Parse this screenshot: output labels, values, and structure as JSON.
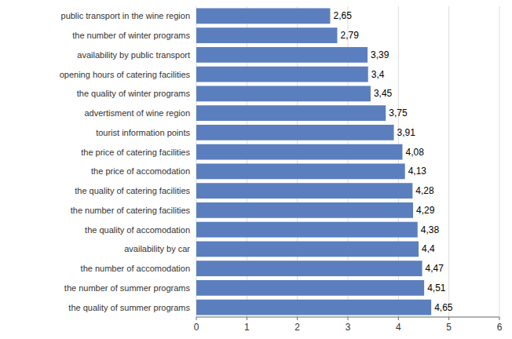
{
  "chart_data": {
    "type": "bar",
    "orientation": "horizontal",
    "categories": [
      "public transport in the wine region",
      "the number of winter programs",
      "availability by public transport",
      "opening hours of catering facilities",
      "the quality of winter programs",
      "advertisment of wine region",
      "tourist information points",
      "the price of catering facilities",
      "the price of accomodation",
      "the quality of catering facilities",
      "the number of catering facilities",
      "the quality of accomodation",
      "availability by car",
      "the number of accomodation",
      "the number  of summer programs",
      "the quality of summer programs"
    ],
    "values": [
      2.65,
      2.79,
      3.39,
      3.4,
      3.45,
      3.75,
      3.91,
      4.08,
      4.13,
      4.28,
      4.29,
      4.38,
      4.4,
      4.47,
      4.51,
      4.65
    ],
    "value_labels": [
      "2,65",
      "2,79",
      "3,39",
      "3,4",
      "3,45",
      "3,75",
      "3,91",
      "4,08",
      "4,13",
      "4,28",
      "4,29",
      "4,38",
      "4,4",
      "4,47",
      "4,51",
      "4,65"
    ],
    "color": "#5b7fbe",
    "xlim": [
      0,
      6
    ],
    "xticks": [
      0,
      1,
      2,
      3,
      4,
      5,
      6
    ],
    "grid": true,
    "data_labels": true
  }
}
